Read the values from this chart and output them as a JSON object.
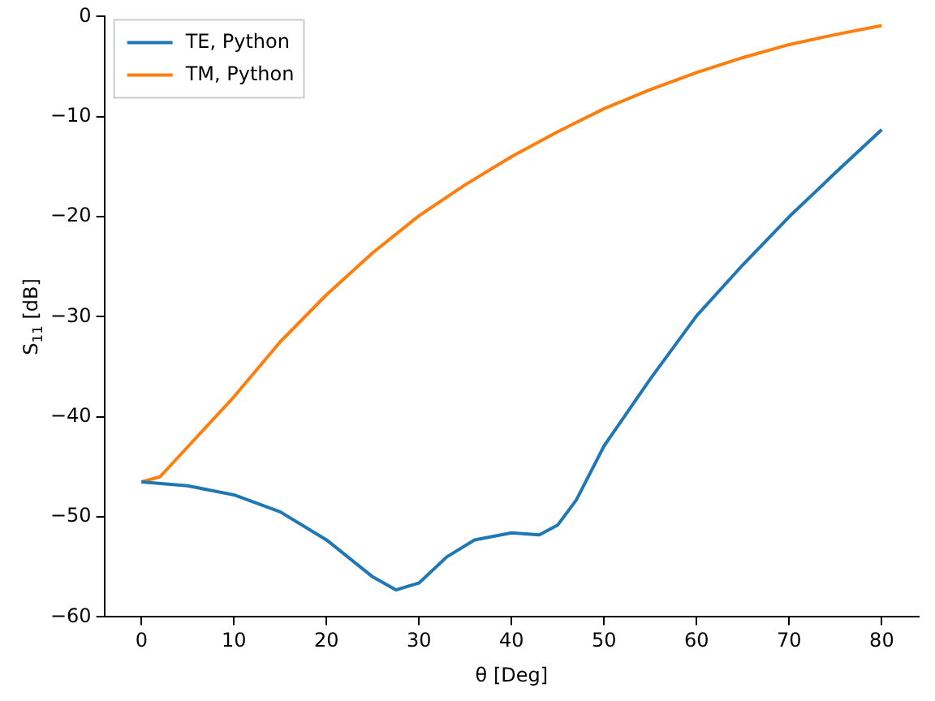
{
  "chart_data": {
    "type": "line",
    "xlabel": "θ [Deg]",
    "ylabel": "S$_{11}$ [dB]",
    "xlim": [
      -4,
      84
    ],
    "ylim": [
      -60,
      0
    ],
    "xticks": [
      0,
      10,
      20,
      30,
      40,
      50,
      60,
      70,
      80
    ],
    "yticks": [
      -60,
      -50,
      -40,
      -30,
      -20,
      -10,
      0
    ],
    "grid": false,
    "legend": "top left",
    "marker": "none",
    "line_style": "solid",
    "series": [
      {
        "name": "TE, Python",
        "color": "#1f77b4",
        "x": [
          0,
          5,
          10,
          15,
          20,
          25,
          27.5,
          30,
          33,
          36,
          40,
          43,
          45,
          47,
          50,
          55,
          60,
          65,
          70,
          75,
          80
        ],
        "values": [
          -46.5,
          -46.9,
          -47.8,
          -49.5,
          -52.3,
          -56,
          -57.3,
          -56.6,
          -54,
          -52.3,
          -51.6,
          -51.8,
          -50.8,
          -48.3,
          -42.9,
          -36.2,
          -29.9,
          -24.8,
          -20,
          -15.6,
          -11.3
        ]
      },
      {
        "name": "TM, Python",
        "color": "#ff7f0e",
        "x": [
          0,
          2,
          5,
          10,
          15,
          20,
          25,
          30,
          35,
          40,
          45,
          50,
          55,
          60,
          65,
          70,
          75,
          80
        ],
        "values": [
          -46.5,
          -46,
          -43,
          -38,
          -32.5,
          -27.8,
          -23.6,
          -19.9,
          -16.8,
          -14,
          -11.5,
          -9.2,
          -7.3,
          -5.6,
          -4.1,
          -2.8,
          -1.8,
          -0.9
        ]
      }
    ]
  }
}
